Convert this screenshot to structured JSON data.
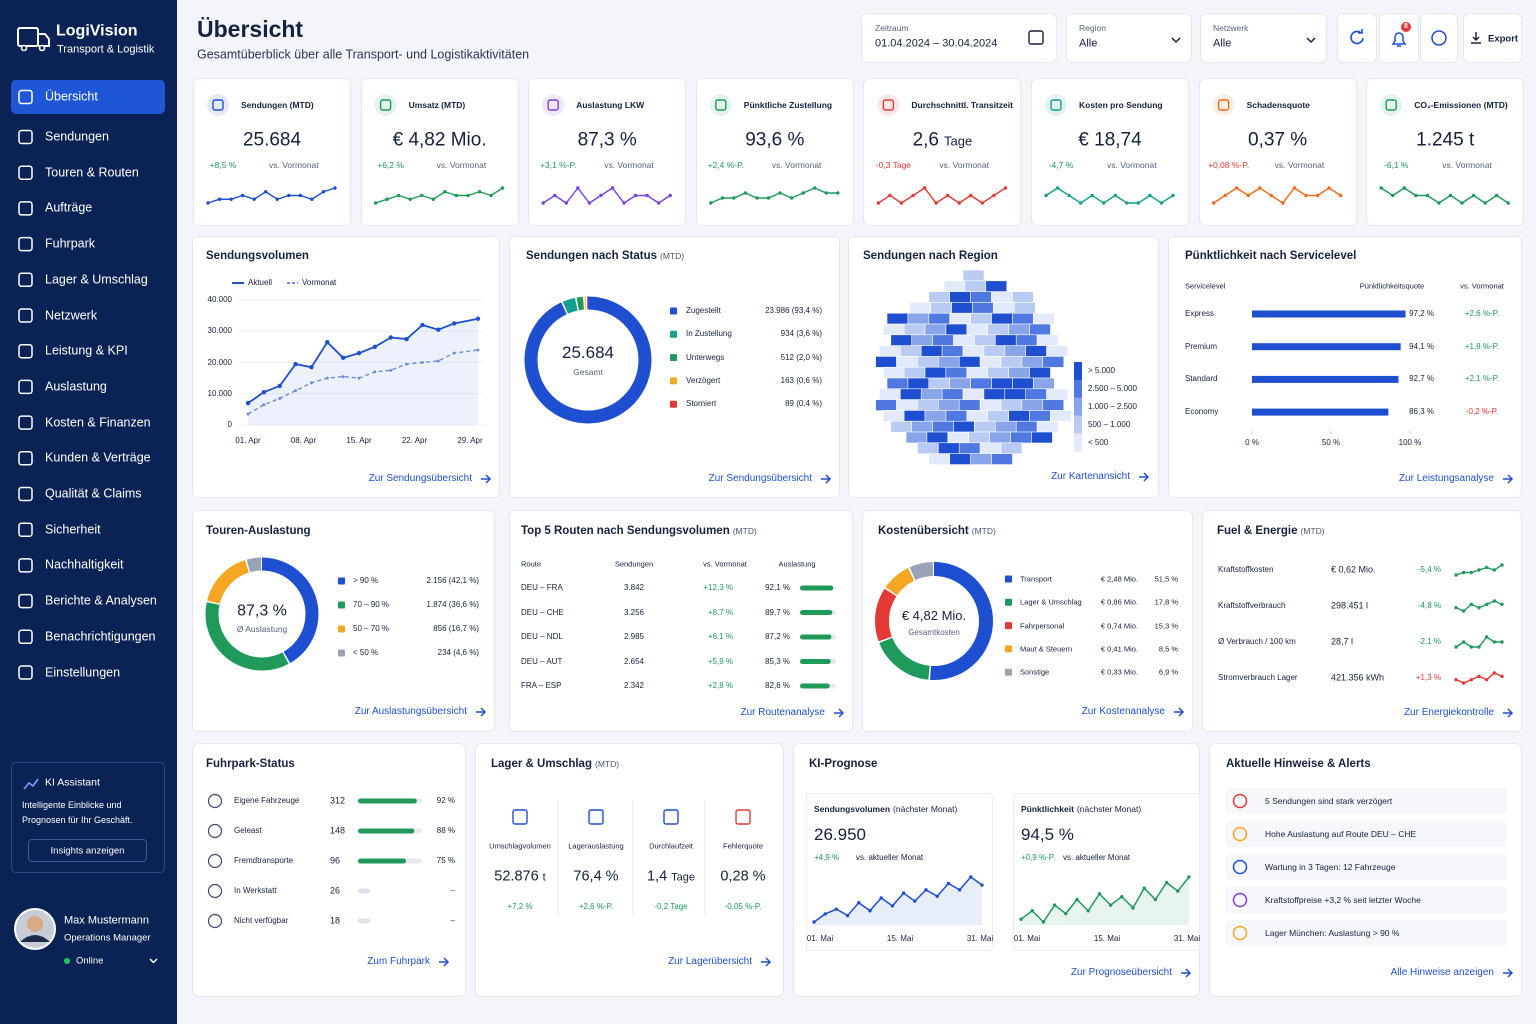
{
  "sidebar": {
    "brand": "LogiVision",
    "tagline": "Transport & Logistik",
    "nav": [
      "Übersicht",
      "Sendungen",
      "Touren & Routen",
      "Aufträge",
      "Fuhrpark",
      "Lager & Umschlag",
      "Netzwerk",
      "Leistung & KPI",
      "Auslastung",
      "Kosten & Finanzen",
      "Kunden & Verträge",
      "Qualität & Claims",
      "Sicherheit",
      "Nachhaltigkeit",
      "Berichte & Analysen",
      "Benachrichtigungen",
      "Einstellungen"
    ],
    "ai": {
      "title": "KI Assistant",
      "text": "Intelligente Einblicke und Prognosen für Ihr Geschäft.",
      "button": "Insights anzeigen"
    },
    "user": {
      "name": "Max Mustermann",
      "role": "Operations Manager",
      "status": "Online"
    }
  },
  "header": {
    "title": "Übersicht",
    "subtitle": "Gesamtüberblick über alle Transport- und Logistikaktivitäten",
    "filters": [
      {
        "label": "Zeitraum",
        "value": "01.04.2024 – 30.04.2024"
      },
      {
        "label": "Region",
        "value": "Alle"
      },
      {
        "label": "Netzwerk",
        "value": "Alle"
      }
    ],
    "badge": "8",
    "export": "Export"
  },
  "kpis": [
    {
      "label": "Sendungen (MTD)",
      "value": "25.684",
      "change": "+8,5 %",
      "compare": "vs. Vormonat",
      "color": "#1f4fd1",
      "trend": "#1f9a5a",
      "spark": [
        4,
        5,
        5,
        6,
        5,
        7,
        5,
        6,
        6,
        5,
        7,
        8
      ]
    },
    {
      "label": "Umsatz (MTD)",
      "value": "€ 4,82 Mio.",
      "change": "+6,2 %",
      "compare": "vs. Vormonat",
      "color": "#1f9a5a",
      "trend": "#1f9a5a",
      "spark": [
        4,
        5,
        6,
        5,
        6,
        5,
        7,
        6,
        6,
        7,
        6,
        8
      ]
    },
    {
      "label": "Auslastung LKW",
      "value": "87,3 %",
      "change": "+3,1 %-P.",
      "compare": "vs. Vormonat",
      "color": "#7b3fe4",
      "trend": "#1f9a5a",
      "spark": [
        5,
        6,
        5,
        7,
        5,
        6,
        7,
        5,
        6,
        6,
        5,
        6
      ]
    },
    {
      "label": "Pünktliche Zustellung",
      "value": "93,6 %",
      "change": "+2,4 %-P.",
      "compare": "vs. Vormonat",
      "color": "#1f9a5a",
      "trend": "#1f9a5a",
      "spark": [
        4,
        5,
        5,
        6,
        5,
        5,
        6,
        5,
        6,
        7,
        6,
        6
      ]
    },
    {
      "label": "Durchschnittl. Transitzeit",
      "value": "2,6",
      "unit": "Tage",
      "change": "-0,3 Tage",
      "compare": "vs. Vormonat",
      "color": "#e53935",
      "trend": "#e53935",
      "spark": [
        5,
        6,
        5,
        6,
        7,
        5,
        6,
        5,
        6,
        5,
        6,
        7
      ]
    },
    {
      "label": "Kosten pro Sendung",
      "value": "€ 18,74",
      "change": "-4,7 %",
      "compare": "vs. Vormonat",
      "color": "#14a08a",
      "trend": "#1f9a5a",
      "spark": [
        6,
        7,
        6,
        5,
        6,
        5,
        6,
        5,
        5,
        6,
        5,
        6
      ]
    },
    {
      "label": "Schadensquote",
      "value": "0,37 %",
      "change": "+0,08 %-P.",
      "compare": "vs. Vormonat",
      "color": "#f26a1b",
      "trend": "#e53935",
      "spark": [
        5,
        6,
        7,
        6,
        7,
        6,
        5,
        7,
        6,
        6,
        7,
        6
      ]
    },
    {
      "label": "CO₂-Emissionen (MTD)",
      "value": "1.245 t",
      "change": "-6,1 %",
      "compare": "vs. Vormonat",
      "color": "#1f9a5a",
      "trend": "#1f9a5a",
      "spark": [
        7,
        6,
        7,
        6,
        6,
        5,
        6,
        5,
        6,
        5,
        6,
        5
      ]
    }
  ],
  "volume": {
    "title": "Sendungsvolumen",
    "link": "Zur Sendungsübersicht",
    "chart_data": {
      "type": "line",
      "x": [
        1,
        3,
        5,
        7,
        9,
        11,
        13,
        15,
        17,
        19,
        21,
        23,
        25,
        27,
        30
      ],
      "series": [
        {
          "name": "Aktuell",
          "color": "#1f4fd1",
          "values": [
            7000,
            10500,
            12500,
            19500,
            18500,
            26500,
            21500,
            23000,
            25000,
            28000,
            27500,
            32000,
            30500,
            32500,
            34000
          ]
        },
        {
          "name": "Vormonat",
          "color": "#6f8fdc",
          "values": [
            3500,
            6500,
            8500,
            11000,
            13500,
            15000,
            15500,
            15000,
            17000,
            17500,
            19500,
            20000,
            20500,
            23000,
            24000
          ]
        }
      ],
      "xlim": [
        1,
        29
      ],
      "xticks": [
        {
          "value": 1,
          "label": "01. Apr"
        },
        {
          "value": 8,
          "label": "08. Apr"
        },
        {
          "value": 15,
          "label": "15. Apr"
        },
        {
          "value": 22,
          "label": "22. Apr"
        },
        {
          "value": 29,
          "label": "29. Apr"
        }
      ],
      "ylim": [
        0,
        40000
      ],
      "yticks": [
        0,
        {
          "value": 10000,
          "label": "10.000"
        },
        {
          "value": 20000,
          "label": "20.000"
        },
        {
          "value": 30000,
          "label": "30.000"
        },
        {
          "value": 40000,
          "label": "40.000"
        }
      ]
    }
  },
  "status": {
    "title": "Sendungen nach Status",
    "suffix": "(MTD)",
    "center": "25.684",
    "center_label": "Gesamt",
    "link": "Zur Sendungsübersicht",
    "chart_data": {
      "type": "pie",
      "categories": [
        "Zugestellt",
        "In Zustellung",
        "Unterwegs",
        "Verzögert",
        "Storniert"
      ],
      "values": [
        23986,
        934,
        512,
        163,
        89
      ],
      "value_labels": [
        "23.986 (93,4 %)",
        "934 (3,6 %)",
        "512 (2,0 %)",
        "163 (0,6 %)",
        "89 (0,4 %)"
      ],
      "colors": [
        "#1f4fd1",
        "#14a08a",
        "#1f9a5a",
        "#f5a623",
        "#e53935"
      ]
    }
  },
  "region": {
    "title": "Sendungen nach Region",
    "link": "Zur Kartenansicht",
    "legend": [
      "> 5.000",
      "2.500 – 5.000",
      "1.000 – 2.500",
      "500 – 1.000",
      "< 500"
    ],
    "legend_colors": [
      "#1f4fd1",
      "#4f78e0",
      "#88a5ea",
      "#b9cbf3",
      "#e2e9fa"
    ]
  },
  "punctuality": {
    "title": "Pünktlichkeit nach Servicelevel",
    "link": "Zur Leistungsanalyse",
    "headers": [
      "Servicelevel",
      "Pünktlichkeitsquote",
      "vs. Vormonat"
    ],
    "chart_data": {
      "type": "bar",
      "categories": [
        "Express",
        "Premium",
        "Standard",
        "Economy"
      ],
      "values": [
        97.2,
        94.1,
        92.7,
        86.3
      ],
      "value_labels": [
        "97,2 %",
        "94,1 %",
        "92,7 %",
        "86,3 %"
      ],
      "changes": [
        "+2,6 %-P.",
        "+1,8 %-P.",
        "+2,1 %-P.",
        "-0,2 %-P."
      ],
      "color": "#1f4fd1",
      "xlim": [
        0,
        100
      ],
      "xticks": [
        {
          "value": 0,
          "label": "0 %"
        },
        {
          "value": 50,
          "label": "50 %"
        },
        {
          "value": 100,
          "label": "100 %"
        }
      ]
    }
  },
  "tours": {
    "title": "Touren-Auslastung",
    "center": "87,3 %",
    "center_label": "Ø Auslastung",
    "link": "Zur Auslastungsübersicht",
    "chart_data": {
      "type": "pie",
      "categories": [
        "> 90 %",
        "70 – 90 %",
        "50 – 70 %",
        "< 50 %"
      ],
      "values": [
        2156,
        1874,
        856,
        234
      ],
      "value_labels": [
        "2.156 (42,1 %)",
        "1.874 (36,6 %)",
        "856 (16,7 %)",
        "234 (4,6 %)"
      ],
      "colors": [
        "#1f4fd1",
        "#1f9a5a",
        "#f5a623",
        "#9aa3b5"
      ]
    }
  },
  "routes": {
    "title": "Top 5 Routen nach Sendungsvolumen",
    "suffix": "(MTD)",
    "link": "Zur Routenanalyse",
    "headers": [
      "Route",
      "Sendungen",
      "vs. Vormonat",
      "Auslastung"
    ],
    "rows": [
      {
        "route": "DEU – FRA",
        "count": "3.842",
        "change": "+12,3 %",
        "util": 92.1,
        "util_label": "92,1 %"
      },
      {
        "route": "DEU – CHE",
        "count": "3.256",
        "change": "+8,7 %",
        "util": 89.7,
        "util_label": "89,7 %"
      },
      {
        "route": "DEU – NDL",
        "count": "2.985",
        "change": "+6,1 %",
        "util": 87.2,
        "util_label": "87,2 %"
      },
      {
        "route": "DEU – AUT",
        "count": "2.654",
        "change": "+5,9 %",
        "util": 85.3,
        "util_label": "85,3 %"
      },
      {
        "route": "FRA – ESP",
        "count": "2.342",
        "change": "+2,8 %",
        "util": 82.6,
        "util_label": "82,6 %"
      }
    ]
  },
  "costs": {
    "title": "Kostenübersicht",
    "suffix": "(MTD)",
    "center": "€ 4,82 Mio.",
    "center_label": "Gesamtkosten",
    "link": "Zur Kostenanalyse",
    "chart_data": {
      "type": "pie",
      "categories": [
        "Transport",
        "Lager & Umschlag",
        "Fahrpersonal",
        "Maut & Steuern",
        "Sonstige"
      ],
      "amounts": [
        "€ 2,48 Mio.",
        "€ 0,86 Mio.",
        "€ 0,74 Mio.",
        "€ 0,41 Mio.",
        "€ 0,33 Mio."
      ],
      "values": [
        51.5,
        17.8,
        15.3,
        8.5,
        6.9
      ],
      "value_labels": [
        "51,5 %",
        "17,8 %",
        "15,3 %",
        "8,5 %",
        "6,9 %"
      ],
      "colors": [
        "#1f4fd1",
        "#1f9a5a",
        "#e53935",
        "#f5a623",
        "#9aa3b5"
      ]
    }
  },
  "fuel": {
    "title": "Fuel & Energie",
    "suffix": "(MTD)",
    "link": "Zur Energiekontrolle",
    "rows": [
      {
        "label": "Kraftstoffkosten",
        "value": "€ 0,62 Mio.",
        "change": "-5,4 %",
        "color": "#1f9a5a",
        "spark": [
          4,
          5,
          5,
          6,
          7,
          6,
          8
        ]
      },
      {
        "label": "Kraftstoffverbrauch",
        "value": "298.451 l",
        "change": "-4,8 %",
        "color": "#1f9a5a",
        "spark": [
          5,
          4,
          6,
          5,
          6,
          7,
          6
        ]
      },
      {
        "label": "Ø Verbrauch / 100 km",
        "value": "28,7 l",
        "change": "-2,1 %",
        "color": "#1f9a5a",
        "spark": [
          5,
          6,
          5,
          5,
          7,
          6,
          6
        ]
      },
      {
        "label": "Stromverbrauch Lager",
        "value": "421.356 kWh",
        "change": "+1,3 %",
        "color": "#e53935",
        "spark": [
          5,
          4,
          5,
          6,
          5,
          7,
          6
        ]
      }
    ]
  },
  "fleet": {
    "title": "Fuhrpark-Status",
    "link": "Zum Fuhrpark",
    "rows": [
      {
        "name": "Eigene Fahrzeuge",
        "count": 312,
        "pct": 92,
        "pct_label": "92 %"
      },
      {
        "name": "Geleast",
        "count": 148,
        "pct": 88,
        "pct_label": "88 %"
      },
      {
        "name": "Fremdtransporte",
        "count": 96,
        "pct": 75,
        "pct_label": "75 %"
      },
      {
        "name": "In Werkstatt",
        "count": 26,
        "pct_label": "–"
      },
      {
        "name": "Nicht verfügbar",
        "count": 18,
        "pct_label": "–"
      }
    ]
  },
  "warehouse": {
    "title": "Lager & Umschlag",
    "suffix": "(MTD)",
    "link": "Zur Lagerübersicht",
    "items": [
      {
        "label": "Umschlagvolumen",
        "value": "52.876",
        "unit": "t",
        "change": "+7,2 %",
        "color": "#1f4fd1"
      },
      {
        "label": "Lagerauslastung",
        "value": "76,4 %",
        "change": "+2,6 %-P.",
        "color": "#1f4fd1"
      },
      {
        "label": "Durchlaufzeit",
        "value": "1,4",
        "unit": "Tage",
        "change": "-0,2 Tage",
        "color": "#1f4fd1"
      },
      {
        "label": "Fehlerquote",
        "value": "0,28 %",
        "change": "-0,05 %-P.",
        "color": "#e53935"
      }
    ]
  },
  "forecast": {
    "title": "KI-Prognose",
    "link": "Zur Prognoseübersicht",
    "cards": [
      {
        "title": "Sendungsvolumen",
        "suffix": "(nächster Monat)",
        "value": "26.950",
        "change": "+4,9 %",
        "compare": "vs. aktueller Monat",
        "color": "#1f4fd1",
        "values": [
          50,
          55,
          58,
          54,
          62,
          57,
          65,
          60,
          68,
          63,
          70,
          66,
          74,
          70,
          78,
          73
        ],
        "xlabels": [
          "01. Mai",
          "15. Mai",
          "31. Mai"
        ]
      },
      {
        "title": "Pünktlichkeit",
        "suffix": "(nächster Monat)",
        "value": "94,5 %",
        "change": "+0,9 %-P.",
        "compare": "vs. aktueller Monat",
        "color": "#1f9a5a",
        "values": [
          55,
          58,
          54,
          60,
          57,
          62,
          58,
          64,
          60,
          63,
          59,
          66,
          62,
          68,
          65,
          70
        ],
        "xlabels": [
          "01. Mai",
          "15. Mai",
          "31. Mai"
        ]
      }
    ]
  },
  "alerts": {
    "title": "Aktuelle Hinweise & Alerts",
    "link": "Alle Hinweise anzeigen",
    "items": [
      {
        "text": "5 Sendungen sind stark verzögert",
        "color": "#e53935"
      },
      {
        "text": "Hohe Auslastung auf Route DEU – CHE",
        "color": "#f5a623"
      },
      {
        "text": "Wartung in 3 Tagen: 12 Fahrzeuge",
        "color": "#1f4fd1"
      },
      {
        "text": "Kraftstoffpreise +3,2 % seit letzter Woche",
        "color": "#7b3fe4"
      },
      {
        "text": "Lager München: Auslastung > 90 %",
        "color": "#f5a623"
      }
    ]
  }
}
